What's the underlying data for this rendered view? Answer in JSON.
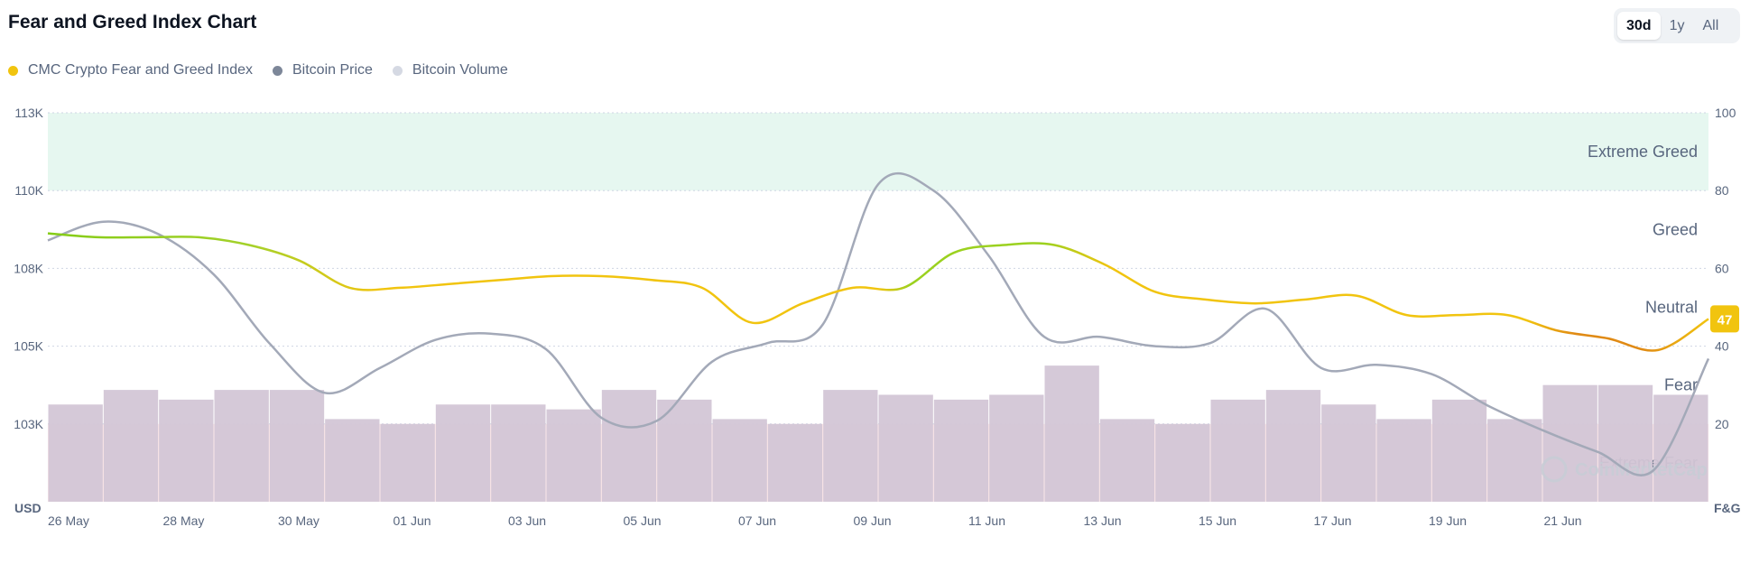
{
  "header": {
    "title": "Fear and Greed Index Chart"
  },
  "range_tabs": [
    {
      "label": "30d",
      "active": true
    },
    {
      "label": "1y",
      "active": false
    },
    {
      "label": "All",
      "active": false
    }
  ],
  "legend": [
    {
      "label": "CMC Crypto Fear and Greed Index",
      "color": "#f1c40f"
    },
    {
      "label": "Bitcoin Price",
      "color": "#7d8799"
    },
    {
      "label": "Bitcoin Volume",
      "color": "#d5d9e3"
    }
  ],
  "watermark": "CoinMarketCap",
  "chart_data": {
    "type": "line",
    "left_axis": {
      "label": "USD",
      "ticks": [
        "113K",
        "110K",
        "108K",
        "105K",
        "103K"
      ]
    },
    "right_axis": {
      "label": "F&G",
      "ticks": [
        "100",
        "80",
        "60",
        "40",
        "20"
      ],
      "ylim": [
        0,
        100
      ]
    },
    "x_labels": [
      "26 May",
      "28 May",
      "30 May",
      "01 Jun",
      "03 Jun",
      "05 Jun",
      "07 Jun",
      "09 Jun",
      "11 Jun",
      "13 Jun",
      "15 Jun",
      "17 Jun",
      "19 Jun",
      "21 Jun"
    ],
    "zones": [
      {
        "label": "Extreme Greed",
        "from": 80,
        "to": 100,
        "color": "#e6f7f0"
      },
      {
        "label": "Greed",
        "from": 60,
        "to": 80
      },
      {
        "label": "Neutral",
        "from": 40,
        "to": 60
      },
      {
        "label": "Fear",
        "from": 20,
        "to": 40
      },
      {
        "label": "Extreme Fear",
        "from": 0,
        "to": 20,
        "color": "#fce8e8"
      }
    ],
    "series": [
      {
        "name": "CMC Crypto Fear and Greed Index",
        "color": "#f1c40f",
        "values": [
          69,
          68,
          68,
          68,
          66,
          62,
          55,
          55,
          56,
          57,
          58,
          58,
          57,
          55,
          46,
          51,
          55,
          55,
          64,
          66,
          66,
          61,
          54,
          52,
          51,
          52,
          53,
          48,
          48,
          48,
          44,
          42,
          39,
          47
        ]
      },
      {
        "name": "Bitcoin Price",
        "values": [
          108700,
          109300,
          108900,
          107600,
          105400,
          103800,
          104600,
          105500,
          105700,
          105200,
          103000,
          102900,
          104800,
          105400,
          106000,
          110500,
          110300,
          108200,
          105600,
          105600,
          105300,
          105400,
          106500,
          104600,
          104700,
          104400,
          103400,
          102600,
          101900,
          101300,
          104900
        ]
      },
      {
        "name": "Bitcoin Volume",
        "values": [
          20,
          23,
          21,
          23,
          23,
          17,
          16,
          20,
          20,
          19,
          23,
          21,
          17,
          16,
          23,
          22,
          21,
          22,
          28,
          17,
          16,
          21,
          23,
          20,
          17,
          21,
          17,
          24,
          24,
          22
        ]
      }
    ],
    "current_value": 47
  }
}
